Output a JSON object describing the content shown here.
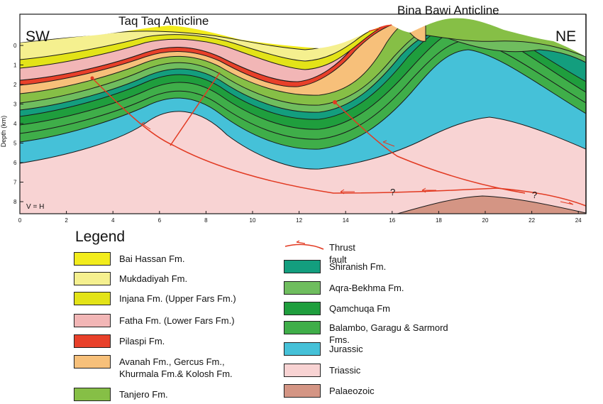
{
  "titles": {
    "left_anticline": "Taq Taq Anticline",
    "right_anticline": "Bina Bawi Anticline",
    "sw": "SW",
    "ne": "NE"
  },
  "axes": {
    "ylabel": "Depth (km)",
    "y_ticks": [
      "0",
      "1",
      "2",
      "3",
      "4",
      "5",
      "6",
      "7",
      "8"
    ],
    "x_ticks": [
      "0",
      "2",
      "4",
      "6",
      "8",
      "10",
      "12",
      "14",
      "16",
      "18",
      "20",
      "22",
      "24"
    ],
    "scale_note": "V = H"
  },
  "annotations": {
    "question_marks": [
      "?",
      "?"
    ]
  },
  "legend": {
    "title": "Legend",
    "fault_label": "Thrust fault",
    "left_items": [
      {
        "label": "Bai Hassan Fm.",
        "color": "#f2ec1c"
      },
      {
        "label": "Mukdadiyah Fm.",
        "color": "#f5f08f"
      },
      {
        "label": "Injana Fm. (Upper Fars Fm.)",
        "color": "#e3e318"
      },
      {
        "label": "Fatha Fm. (Lower Fars Fm.)",
        "color": "#f2b6b6"
      },
      {
        "label": "Pilaspi Fm.",
        "color": "#e8402a"
      },
      {
        "label": "Avanah Fm., Gercus Fm., Khurmala Fm.& Kolosh Fm.",
        "color": "#f7c07a"
      },
      {
        "label": "Tanjero Fm.",
        "color": "#86bf46"
      }
    ],
    "right_items": [
      {
        "label": "Shiranish Fm.",
        "color": "#139e7e"
      },
      {
        "label": "Aqra-Bekhma Fm.",
        "color": "#6fbd5e"
      },
      {
        "label": "Qamchuqa Fm",
        "color": "#1f9e3d"
      },
      {
        "label": "Balambo, Garagu & Sarmord Fms.",
        "color": "#3fae49"
      },
      {
        "label": "Jurassic",
        "color": "#45c1d8"
      },
      {
        "label": "Triassic",
        "color": "#f8d3d3"
      },
      {
        "label": "Palaeozoic",
        "color": "#d49584"
      }
    ]
  },
  "colors": {
    "fault": "#e23a22",
    "outline": "#1a1a1a"
  }
}
